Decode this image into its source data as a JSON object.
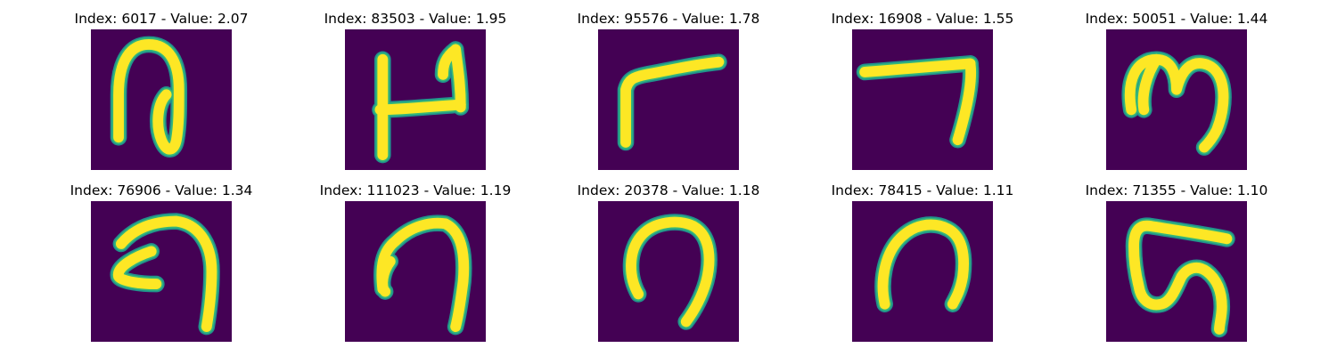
{
  "colors": {
    "background": "#440154",
    "stroke_outer": "#21918c",
    "stroke_mid": "#35b779",
    "stroke_inner": "#fde725"
  },
  "panels": [
    {
      "index": "6017",
      "value": "2.07",
      "title": "Index: 6017 - Value: 2.07"
    },
    {
      "index": "83503",
      "value": "1.95",
      "title": "Index: 83503 - Value: 1.95"
    },
    {
      "index": "95576",
      "value": "1.78",
      "title": "Index: 95576 - Value: 1.78"
    },
    {
      "index": "16908",
      "value": "1.55",
      "title": "Index: 16908 - Value: 1.55"
    },
    {
      "index": "50051",
      "value": "1.44",
      "title": "Index: 50051 - Value: 1.44"
    },
    {
      "index": "76906",
      "value": "1.34",
      "title": "Index: 76906 - Value: 1.34"
    },
    {
      "index": "111023",
      "value": "1.19",
      "title": "Index: 111023 - Value: 1.19"
    },
    {
      "index": "20378",
      "value": "1.18",
      "title": "Index: 20378 - Value: 1.18"
    },
    {
      "index": "78415",
      "value": "1.11",
      "title": "Index: 78415 - Value: 1.11"
    },
    {
      "index": "71355",
      "value": "1.10",
      "title": "Index: 71355 - Value: 1.10"
    }
  ]
}
